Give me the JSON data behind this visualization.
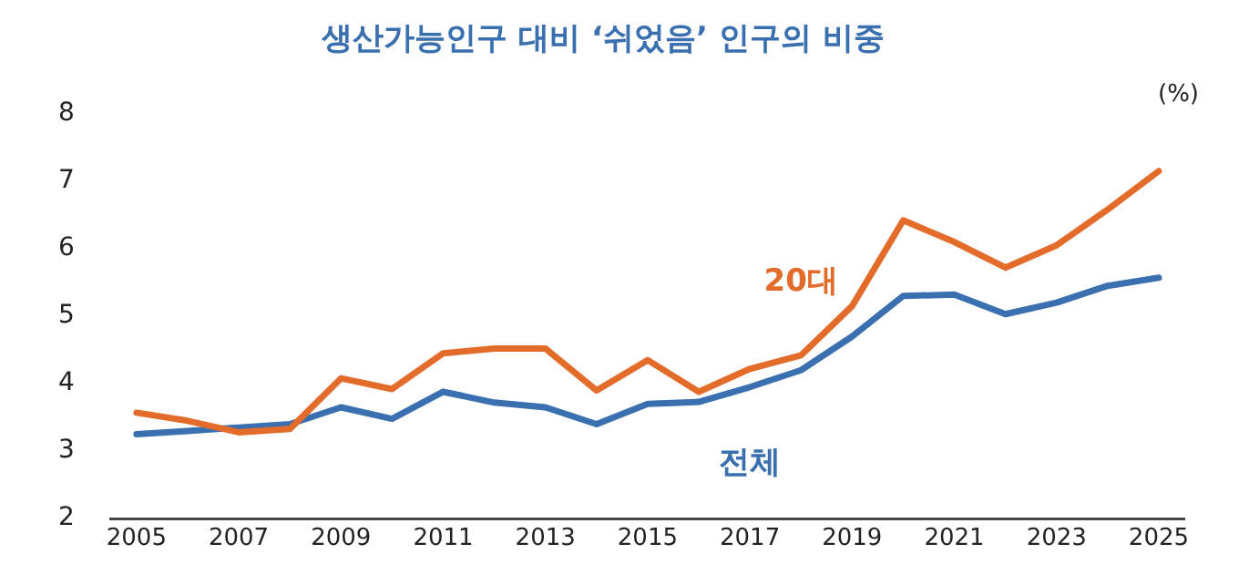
{
  "chart_data": {
    "type": "line",
    "title": "생산가능인구 대비 ‘쉬었음’ 인구의 비중",
    "ylabel": "(%)",
    "x": [
      2005,
      2006,
      2007,
      2008,
      2009,
      2010,
      2011,
      2012,
      2013,
      2014,
      2015,
      2016,
      2017,
      2018,
      2019,
      2020,
      2021,
      2022,
      2023,
      2024,
      2025
    ],
    "xlim": [
      2004.5,
      2025.5
    ],
    "xticks": [
      2005,
      2007,
      2009,
      2011,
      2013,
      2015,
      2017,
      2019,
      2021,
      2023,
      2025
    ],
    "ylim": [
      2,
      8
    ],
    "yticks": [
      2,
      3,
      4,
      5,
      6,
      7,
      8
    ],
    "grid": false,
    "legend": false,
    "marker": "none",
    "line_style": "solid",
    "series": [
      {
        "name": "20대",
        "color": "#e46c2a",
        "values": [
          3.57,
          3.45,
          3.28,
          3.33,
          4.08,
          3.92,
          4.45,
          4.52,
          4.52,
          3.9,
          4.35,
          3.88,
          4.22,
          4.42,
          5.15,
          6.42,
          6.1,
          5.72,
          6.05,
          6.58,
          7.15
        ]
      },
      {
        "name": "전체",
        "color": "#3a6fb0",
        "values": [
          3.25,
          3.3,
          3.35,
          3.4,
          3.65,
          3.48,
          3.88,
          3.72,
          3.65,
          3.4,
          3.7,
          3.73,
          3.95,
          4.2,
          4.7,
          5.3,
          5.32,
          5.03,
          5.2,
          5.45,
          5.57
        ]
      }
    ]
  }
}
